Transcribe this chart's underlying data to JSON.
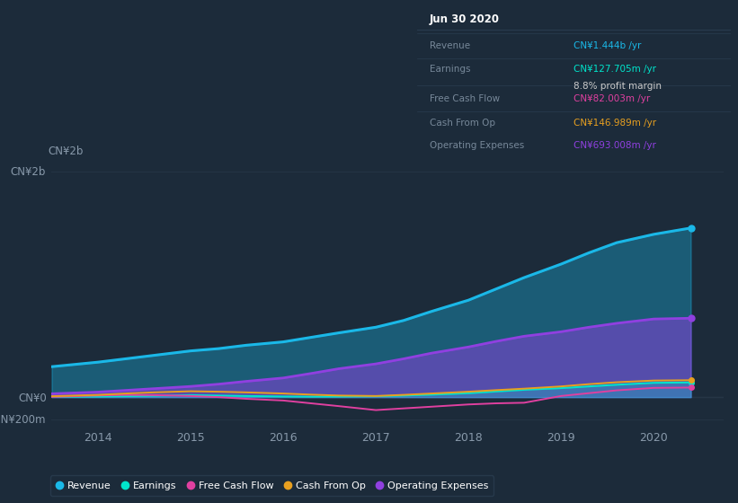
{
  "bg_color": "#1c2b3a",
  "plot_bg_color": "#1c2b3a",
  "grid_color": "#253545",
  "years": [
    2013.5,
    2014.0,
    2014.3,
    2014.6,
    2015.0,
    2015.3,
    2015.6,
    2016.0,
    2016.3,
    2016.6,
    2017.0,
    2017.3,
    2017.6,
    2018.0,
    2018.3,
    2018.6,
    2019.0,
    2019.3,
    2019.6,
    2020.0,
    2020.4
  ],
  "revenue": [
    270,
    310,
    340,
    370,
    410,
    430,
    460,
    490,
    530,
    570,
    620,
    680,
    760,
    860,
    960,
    1060,
    1180,
    1280,
    1370,
    1444,
    1500
  ],
  "earnings": [
    2,
    5,
    8,
    12,
    18,
    14,
    10,
    6,
    4,
    5,
    8,
    14,
    22,
    35,
    50,
    65,
    80,
    95,
    110,
    127,
    130
  ],
  "free_cash_flow": [
    2,
    15,
    20,
    18,
    10,
    0,
    -15,
    -30,
    -55,
    -80,
    -115,
    -100,
    -85,
    -65,
    -55,
    -50,
    10,
    35,
    60,
    82,
    85
  ],
  "cash_from_op": [
    8,
    20,
    32,
    42,
    52,
    48,
    42,
    32,
    22,
    14,
    10,
    20,
    32,
    48,
    62,
    75,
    95,
    115,
    132,
    147,
    150
  ],
  "op_expenses": [
    30,
    45,
    60,
    75,
    95,
    115,
    140,
    170,
    210,
    252,
    295,
    340,
    390,
    445,
    495,
    540,
    580,
    620,
    655,
    693,
    700
  ],
  "revenue_color": "#1ab8e8",
  "earnings_color": "#00e5cc",
  "fcf_color": "#e040a0",
  "cfo_color": "#e8a020",
  "opex_color": "#9040e0",
  "ylim_min": -270,
  "ylim_max": 2050,
  "ytick_positions": [
    -200,
    0,
    2000
  ],
  "ytick_labels": [
    "-CN¥200m",
    "CN¥0",
    "CN¥2b"
  ],
  "xticks": [
    2014,
    2015,
    2016,
    2017,
    2018,
    2019,
    2020
  ],
  "legend_labels": [
    "Revenue",
    "Earnings",
    "Free Cash Flow",
    "Cash From Op",
    "Operating Expenses"
  ],
  "info_box": {
    "title": "Jun 30 2020",
    "rows": [
      {
        "label": "Revenue",
        "value": "CN¥1.444b /yr",
        "color": "#1ab8e8"
      },
      {
        "label": "Earnings",
        "value": "CN¥127.705m /yr",
        "color": "#00e5cc",
        "sub": "8.8% profit margin",
        "sub_color": "#cccccc"
      },
      {
        "label": "Free Cash Flow",
        "value": "CN¥82.003m /yr",
        "color": "#e040a0"
      },
      {
        "label": "Cash From Op",
        "value": "CN¥146.989m /yr",
        "color": "#e8a020"
      },
      {
        "label": "Operating Expenses",
        "value": "CN¥693.008m /yr",
        "color": "#9040e0"
      }
    ]
  }
}
